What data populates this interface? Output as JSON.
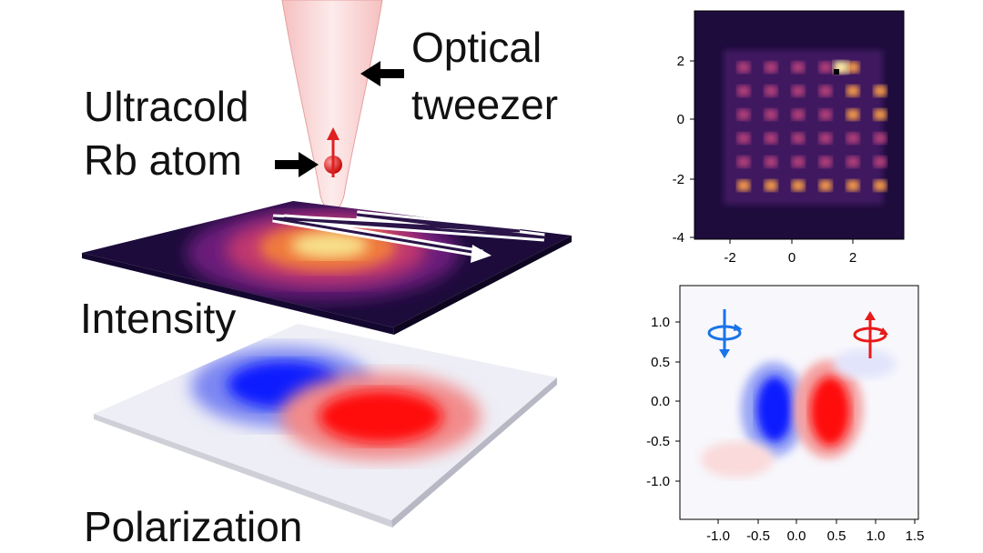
{
  "labels": {
    "tweezer_line1": "Optical",
    "tweezer_line2": "tweezer",
    "atom_line1": "Ultracold",
    "atom_line2": "Rb atom",
    "intensity": "Intensity",
    "polarization": "Polarization"
  },
  "colors": {
    "beam": "#f6c7c7",
    "atom": "#e02020",
    "arrow": "#000000",
    "plasma_dark": "#1b0a3a",
    "plasma_bright": "#f6e58a",
    "pol_blue": "#0a1aff",
    "pol_red": "#ff1010"
  },
  "intensity_map": {
    "x_ticks": [
      "-2",
      "0",
      "2"
    ],
    "y_ticks": [
      "2",
      "0",
      "-2",
      "-4"
    ]
  },
  "polarization_map": {
    "x_ticks": [
      "-1.0",
      "-0.5",
      "0.0",
      "0.5",
      "1.0",
      "1.5"
    ],
    "y_ticks": [
      "1.0",
      "0.5",
      "0.0",
      "-0.5",
      "-1.0"
    ],
    "left_icon": "circular-arrow-down-icon",
    "right_icon": "circular-arrow-up-icon"
  }
}
